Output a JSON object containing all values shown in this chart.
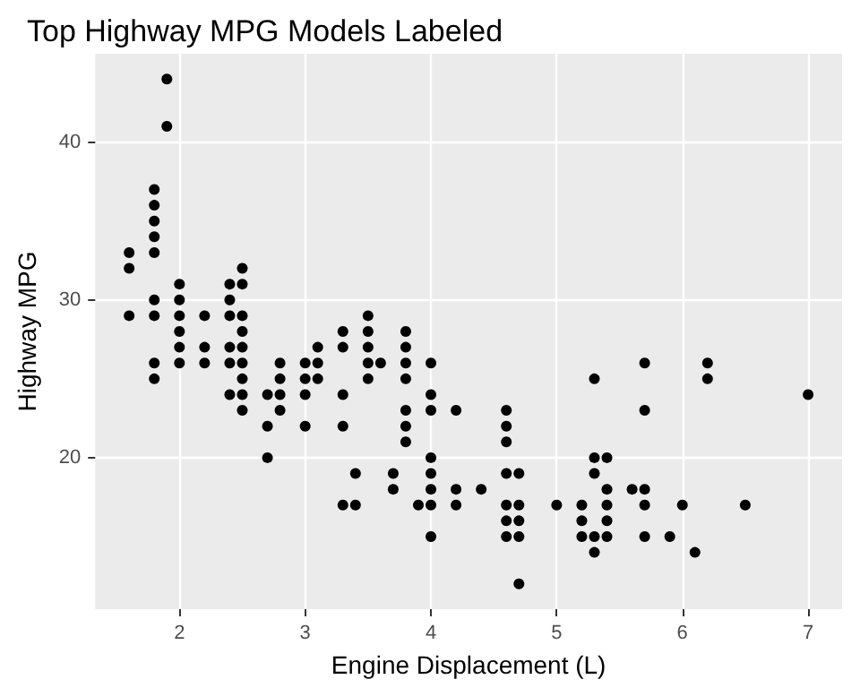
{
  "chart_data": {
    "type": "scatter",
    "title": "Top Highway MPG Models Labeled",
    "xlabel": "Engine Displacement (L)",
    "ylabel": "Highway MPG",
    "x": [
      1.6,
      1.6,
      1.6,
      1.8,
      1.8,
      1.8,
      1.8,
      1.8,
      1.8,
      1.8,
      1.8,
      1.8,
      1.9,
      1.9,
      2.0,
      2.0,
      2.0,
      2.0,
      2.0,
      2.0,
      2.2,
      2.2,
      2.2,
      2.4,
      2.4,
      2.4,
      2.4,
      2.4,
      2.4,
      2.5,
      2.5,
      2.5,
      2.5,
      2.5,
      2.5,
      2.5,
      2.5,
      2.5,
      2.7,
      2.7,
      2.7,
      2.8,
      2.8,
      2.8,
      2.8,
      3.0,
      3.0,
      3.0,
      3.0,
      3.1,
      3.1,
      3.1,
      3.3,
      3.3,
      3.3,
      3.3,
      3.3,
      3.4,
      3.4,
      3.5,
      3.5,
      3.5,
      3.5,
      3.5,
      3.6,
      3.7,
      3.7,
      3.8,
      3.8,
      3.8,
      3.8,
      3.8,
      3.8,
      3.8,
      3.9,
      4.0,
      4.0,
      4.0,
      4.0,
      4.0,
      4.0,
      4.0,
      4.0,
      4.2,
      4.2,
      4.2,
      4.4,
      4.6,
      4.6,
      4.6,
      4.6,
      4.6,
      4.6,
      4.6,
      4.7,
      4.7,
      4.7,
      4.7,
      4.7,
      5.0,
      5.2,
      5.2,
      5.2,
      5.3,
      5.3,
      5.3,
      5.3,
      5.3,
      5.4,
      5.4,
      5.4,
      5.4,
      5.4,
      5.6,
      5.7,
      5.7,
      5.7,
      5.7,
      5.7,
      5.9,
      6.0,
      6.1,
      6.2,
      6.2,
      6.5,
      7.0
    ],
    "values": [
      33,
      32,
      29,
      37,
      36,
      35,
      34,
      33,
      30,
      29,
      26,
      25,
      44,
      41,
      31,
      30,
      29,
      28,
      27,
      26,
      29,
      27,
      26,
      31,
      30,
      29,
      27,
      26,
      24,
      32,
      31,
      29,
      28,
      27,
      26,
      25,
      24,
      23,
      24,
      22,
      20,
      26,
      25,
      24,
      23,
      26,
      25,
      24,
      22,
      27,
      26,
      25,
      28,
      27,
      24,
      22,
      17,
      19,
      17,
      29,
      28,
      27,
      26,
      25,
      26,
      19,
      18,
      28,
      27,
      26,
      25,
      23,
      22,
      21,
      17,
      26,
      24,
      23,
      20,
      19,
      18,
      17,
      15,
      23,
      18,
      17,
      18,
      23,
      22,
      21,
      19,
      17,
      16,
      15,
      19,
      17,
      16,
      15,
      12,
      17,
      17,
      16,
      15,
      25,
      20,
      19,
      15,
      14,
      20,
      18,
      17,
      16,
      15,
      18,
      26,
      23,
      18,
      17,
      15,
      15,
      17,
      14,
      26,
      25,
      17,
      24
    ],
    "color": "#000000",
    "marker": "circle",
    "xlim": [
      1.33,
      7.27
    ],
    "xticks": [
      2,
      3,
      4,
      5,
      6,
      7
    ],
    "ylim": [
      10.4,
      45.6
    ],
    "yticks": [
      20,
      30,
      40
    ],
    "grid": true
  }
}
